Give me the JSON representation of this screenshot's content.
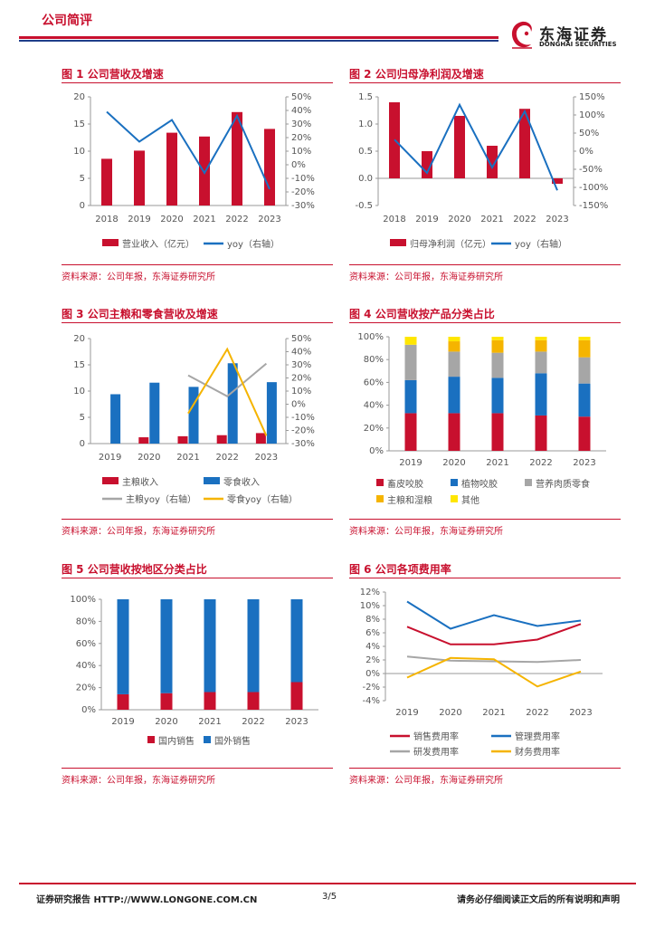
{
  "header": {
    "title": "公司简评",
    "logo_cn": "东海证券",
    "logo_en": "DONGHAI SECURITIES"
  },
  "source_text": "资料来源：公司年报，东海证券研究所",
  "footer": {
    "left": "证券研究报告   HTTP://WWW.LONGONE.COM.CN",
    "page": "3/5",
    "right": "请务必仔细阅读正文后的所有说明和声明"
  },
  "colors": {
    "red": "#c8102e",
    "blue": "#1a70c0",
    "gray": "#a6a6a6",
    "orange": "#f5b400",
    "yellow": "#ffe600"
  },
  "chart_data": [
    {
      "id": "fig1",
      "type": "bar",
      "title": "图 1   公司营收及增速",
      "categories": [
        "2018",
        "2019",
        "2020",
        "2021",
        "2022",
        "2023"
      ],
      "series": [
        {
          "name": "营业收入（亿元）",
          "type": "bar",
          "axis": "left",
          "values": [
            8.6,
            10.1,
            13.4,
            12.7,
            17.2,
            14.1
          ]
        },
        {
          "name": "yoy（右轴）",
          "type": "line",
          "axis": "right",
          "values": [
            39,
            17,
            33,
            -6,
            36,
            -18
          ]
        }
      ],
      "ylim": [
        0,
        20
      ],
      "yticks": [
        "0",
        "5",
        "10",
        "15",
        "20"
      ],
      "y2lim": [
        -30,
        50
      ],
      "y2ticks": [
        "-30%",
        "-20%",
        "-10%",
        "0%",
        "10%",
        "20%",
        "30%",
        "40%",
        "50%"
      ]
    },
    {
      "id": "fig2",
      "type": "bar",
      "title": "图 2   公司归母净利润及增速",
      "categories": [
        "2018",
        "2019",
        "2020",
        "2021",
        "2022",
        "2023"
      ],
      "series": [
        {
          "name": "归母净利润（亿元）",
          "type": "bar",
          "axis": "left",
          "values": [
            1.4,
            0.5,
            1.15,
            0.6,
            1.28,
            -0.1
          ]
        },
        {
          "name": "yoy（右轴）",
          "type": "line",
          "axis": "right",
          "values": [
            32,
            -60,
            128,
            -45,
            110,
            -108
          ]
        }
      ],
      "ylim": [
        -0.5,
        1.5
      ],
      "yticks": [
        "-0.5",
        "0.0",
        "0.5",
        "1.0",
        "1.5"
      ],
      "y2lim": [
        -150,
        150
      ],
      "y2ticks": [
        "-150%",
        "-100%",
        "-50%",
        "0%",
        "50%",
        "100%",
        "150%"
      ]
    },
    {
      "id": "fig3",
      "type": "bar",
      "title": "图 3   公司主粮和零食营收及增速",
      "categories": [
        "2019",
        "2020",
        "2021",
        "2022",
        "2023"
      ],
      "series": [
        {
          "name": "主粮收入",
          "type": "bar",
          "axis": "left",
          "values": [
            0,
            1.2,
            1.4,
            1.6,
            2.0
          ]
        },
        {
          "name": "零食收入",
          "type": "bar",
          "axis": "left",
          "values": [
            9.4,
            11.6,
            10.8,
            15.3,
            11.7
          ]
        },
        {
          "name": "主粮yoy（右轴）",
          "type": "line",
          "axis": "right",
          "values": [
            null,
            null,
            22,
            6,
            31
          ]
        },
        {
          "name": "零食yoy（右轴）",
          "type": "line",
          "axis": "right",
          "values": [
            null,
            null,
            -7,
            42,
            -24
          ]
        }
      ],
      "ylim": [
        0,
        20
      ],
      "yticks": [
        "0",
        "5",
        "10",
        "15",
        "20"
      ],
      "y2lim": [
        -30,
        50
      ],
      "y2ticks": [
        "-30%",
        "-20%",
        "-10%",
        "0%",
        "10%",
        "20%",
        "30%",
        "40%",
        "50%"
      ]
    },
    {
      "id": "fig4",
      "type": "bar",
      "stacked": true,
      "title": "图 4   公司营收按产品分类占比",
      "categories": [
        "2019",
        "2020",
        "2021",
        "2022",
        "2023"
      ],
      "series": [
        {
          "name": "畜皮咬胶",
          "values": [
            33,
            33,
            33,
            31,
            30
          ]
        },
        {
          "name": "植物咬胶",
          "values": [
            29,
            32,
            31,
            37,
            29
          ]
        },
        {
          "name": "营养肉质零食",
          "values": [
            31,
            22,
            22,
            19,
            23
          ]
        },
        {
          "name": "主粮和湿粮",
          "values": [
            0,
            9,
            11,
            10,
            15
          ]
        },
        {
          "name": "其他",
          "values": [
            7,
            4,
            3,
            3,
            3
          ]
        }
      ],
      "ylim": [
        0,
        100
      ],
      "yticks": [
        "0%",
        "20%",
        "40%",
        "60%",
        "80%",
        "100%"
      ]
    },
    {
      "id": "fig5",
      "type": "bar",
      "stacked": true,
      "title": "图 5   公司营收按地区分类占比",
      "categories": [
        "2019",
        "2020",
        "2021",
        "2022",
        "2023"
      ],
      "series": [
        {
          "name": "国内销售",
          "values": [
            14,
            15,
            16,
            16,
            25
          ]
        },
        {
          "name": "国外销售",
          "values": [
            86,
            85,
            84,
            84,
            75
          ]
        }
      ],
      "ylim": [
        0,
        100
      ],
      "yticks": [
        "0%",
        "20%",
        "40%",
        "60%",
        "80%",
        "100%"
      ]
    },
    {
      "id": "fig6",
      "type": "line",
      "title": "图 6   公司各项费用率",
      "categories": [
        "2019",
        "2020",
        "2021",
        "2022",
        "2023"
      ],
      "series": [
        {
          "name": "销售费用率",
          "values": [
            6.9,
            4.3,
            4.3,
            5.0,
            7.3
          ]
        },
        {
          "name": "管理费用率",
          "values": [
            10.6,
            6.6,
            8.6,
            7.0,
            7.8
          ]
        },
        {
          "name": "研发费用率",
          "values": [
            2.5,
            1.9,
            1.8,
            1.7,
            2.0
          ]
        },
        {
          "name": "财务费用率",
          "values": [
            -0.6,
            2.3,
            2.1,
            -1.9,
            0.3
          ]
        }
      ],
      "ylim": [
        -4,
        12
      ],
      "yticks": [
        "-4%",
        "-2%",
        "0%",
        "2%",
        "4%",
        "6%",
        "8%",
        "10%",
        "12%"
      ]
    }
  ]
}
